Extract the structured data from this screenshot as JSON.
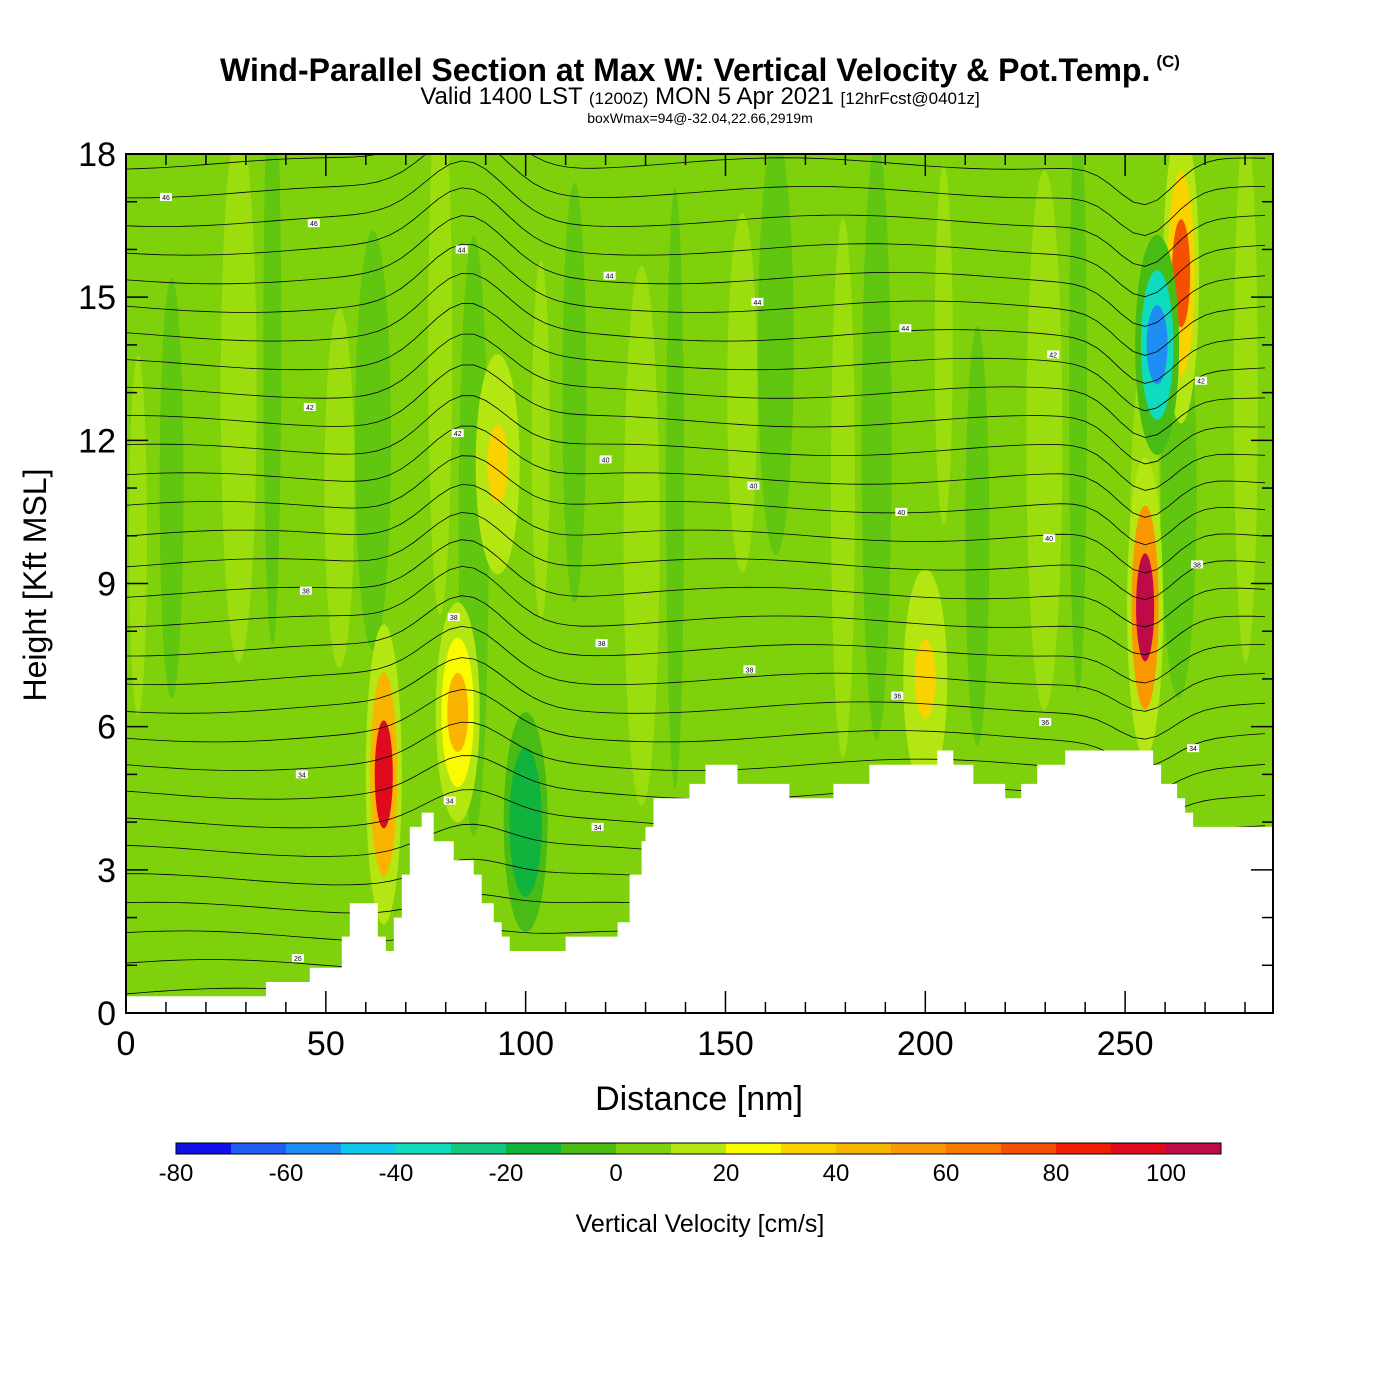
{
  "title": {
    "main": "Wind-Parallel Section at Max W: Vertical Velocity & Pot.Temp.",
    "copyright_mark": "(C)",
    "valid_prefix": "Valid 1400 LST",
    "valid_zulu": "(1200Z)",
    "valid_date": "MON 5 Apr 2021",
    "forecast": "[12hrFcst@0401z]",
    "box_info": "boxWmax=94@-32.04,22.66,2919m"
  },
  "chart_data": {
    "type": "heatmap",
    "xlabel": "Distance [nm]",
    "ylabel": "Height [Kft MSL]",
    "xlim": [
      0,
      287
    ],
    "ylim": [
      0,
      18
    ],
    "x_ticks": [
      0,
      50,
      100,
      150,
      200,
      250
    ],
    "y_ticks": [
      0,
      3,
      6,
      9,
      12,
      15,
      18
    ],
    "terrain_profile": {
      "distance_nm": [
        0,
        35,
        35,
        40,
        40,
        46,
        46,
        54,
        54,
        56,
        56,
        58,
        58,
        63,
        63,
        65,
        65,
        67,
        67,
        69,
        69,
        71,
        71,
        74,
        74,
        77,
        77,
        80,
        80,
        82,
        82,
        87,
        87,
        89,
        89,
        92,
        92,
        94,
        94,
        96,
        96,
        100,
        100,
        110,
        110,
        116,
        116,
        123,
        123,
        126,
        126,
        129,
        129,
        130,
        130,
        132,
        132,
        137,
        137,
        141,
        141,
        145,
        145,
        153,
        153,
        166,
        166,
        177,
        177,
        186,
        186,
        203,
        203,
        207,
        207,
        212,
        212,
        220,
        220,
        224,
        224,
        228,
        228,
        235,
        235,
        257,
        257,
        259,
        259,
        263,
        263,
        265,
        265,
        267,
        267,
        270,
        270,
        287
      ],
      "height_kft": [
        0.35,
        0.35,
        0.65,
        0.65,
        0.65,
        0.65,
        0.95,
        0.95,
        1.6,
        1.6,
        2.3,
        2.3,
        2.3,
        2.3,
        1.6,
        1.6,
        1.3,
        1.3,
        2.0,
        2.0,
        2.9,
        2.9,
        3.9,
        3.9,
        4.2,
        4.2,
        3.6,
        3.6,
        3.6,
        3.6,
        3.2,
        3.2,
        2.9,
        2.9,
        2.3,
        2.3,
        1.9,
        1.9,
        1.6,
        1.6,
        1.3,
        1.3,
        1.3,
        1.3,
        1.6,
        1.6,
        1.6,
        1.6,
        1.9,
        1.9,
        2.9,
        2.9,
        3.6,
        3.6,
        3.9,
        3.9,
        4.5,
        4.5,
        4.5,
        4.5,
        4.8,
        4.8,
        5.2,
        5.2,
        4.8,
        4.8,
        4.5,
        4.5,
        4.8,
        4.8,
        5.2,
        5.2,
        5.5,
        5.5,
        5.2,
        5.2,
        4.8,
        4.8,
        4.5,
        4.5,
        4.8,
        4.8,
        5.2,
        5.2,
        5.5,
        5.5,
        5.2,
        5.2,
        4.8,
        4.8,
        4.5,
        4.5,
        4.2,
        4.2,
        3.9,
        3.9,
        3.9,
        3.9
      ]
    },
    "updrafts": [
      {
        "x": 64.5,
        "y": 5.0,
        "value": 90
      },
      {
        "x": 83,
        "y": 6.3,
        "value": 40
      },
      {
        "x": 93,
        "y": 11.5,
        "value": 30
      },
      {
        "x": 100,
        "y": 4.0,
        "value": -20
      },
      {
        "x": 200,
        "y": 7.0,
        "value": 30
      },
      {
        "x": 255,
        "y": 8.5,
        "value": 100
      },
      {
        "x": 264,
        "y": 15.5,
        "value": 70
      },
      {
        "x": 258,
        "y": 14.0,
        "value": -55
      }
    ],
    "isentrope_labels": [
      "46",
      "46",
      "44",
      "44",
      "44",
      "44",
      "42",
      "42",
      "42",
      "42",
      "40",
      "40",
      "40",
      "40",
      "38",
      "38",
      "38",
      "38",
      "38",
      "36",
      "36",
      "34",
      "34",
      "34",
      "34",
      "34",
      "32",
      "30",
      "28",
      "26"
    ],
    "colorbar": {
      "label": "Vertical Velocity [cm/s]",
      "min": -80,
      "max": 110,
      "step": 10,
      "tick_labels": [
        "-80",
        "-60",
        "-40",
        "-20",
        "0",
        "20",
        "40",
        "60",
        "80",
        "100"
      ],
      "colors": [
        "#0f10e8",
        "#1e5cf2",
        "#1e8ef2",
        "#10c8ee",
        "#0fdcbe",
        "#12c882",
        "#10b43c",
        "#48bb14",
        "#7fd20b",
        "#b4e612",
        "#fafa00",
        "#fad200",
        "#f9b400",
        "#f99800",
        "#f87800",
        "#f45000",
        "#f01e00",
        "#e00a1e",
        "#be0a46"
      ]
    }
  }
}
